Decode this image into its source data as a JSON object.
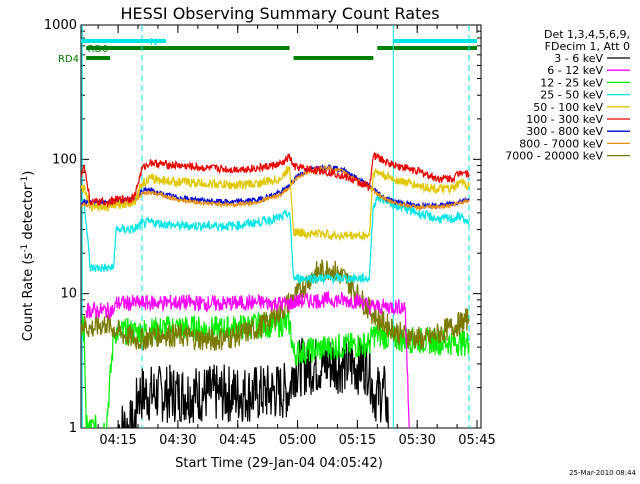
{
  "chart_data": {
    "type": "line",
    "title": "HESSI Observing Summary Count Rates",
    "xlabel": "Start Time (29-Jan-04 04:05:42)",
    "ylabel_main": "Count Rate (s",
    "ylabel_sup1": "-1",
    "ylabel_mid": " detector",
    "ylabel_sup2": "-1",
    "ylabel_end": ")",
    "yscale": "log",
    "xlim": [
      "04:05:42",
      "05:46:00"
    ],
    "ylim": [
      1,
      1000
    ],
    "x_ticks": [
      "04:15",
      "04:30",
      "04:45",
      "05:00",
      "05:15",
      "05:30",
      "05:45"
    ],
    "y_ticks": [
      "1",
      "10",
      "100",
      "1000"
    ],
    "legend_placement": "right",
    "legend_header": [
      "Det 1,3,4,5,6,9,",
      "FDecim 1, Att 0"
    ],
    "legend": [
      {
        "label": "3 - 6 keV",
        "color": "#000000"
      },
      {
        "label": "6 - 12 keV",
        "color": "#ff00ff"
      },
      {
        "label": "12 - 25 keV",
        "color": "#00ee00"
      },
      {
        "label": "25 - 50 keV",
        "color": "#00e5e5"
      },
      {
        "label": "50 - 100 keV",
        "color": "#e0c800"
      },
      {
        "label": "100 - 300 keV",
        "color": "#e80000"
      },
      {
        "label": "300 - 800 keV",
        "color": "#0000dd"
      },
      {
        "label": "800 - 7000 keV",
        "color": "#e89010"
      },
      {
        "label": "7000 - 20000 keV",
        "color": "#7a7a00"
      }
    ],
    "series": [
      {
        "name": "100 - 300 keV",
        "color": "#e80000",
        "x": [
          "04:05:42",
          "04:06:30",
          "04:08:00",
          "04:12:00",
          "04:15:00",
          "04:19:00",
          "04:21:00",
          "04:23:00",
          "04:26:00",
          "04:30:00",
          "04:37:00",
          "04:44:00",
          "04:50:00",
          "04:56:00",
          "04:58:00",
          "04:59:00",
          "05:02:00",
          "05:06:00",
          "05:10:00",
          "05:13:00",
          "05:16:00",
          "05:18:00",
          "05:19:00",
          "05:20:00",
          "05:22:00",
          "05:25:00",
          "05:30:00",
          "05:35:00",
          "05:39:00",
          "05:41:00",
          "05:43:00"
        ],
        "y": [
          75,
          90,
          48,
          48,
          50,
          52,
          85,
          95,
          92,
          90,
          86,
          84,
          86,
          92,
          105,
          88,
          85,
          82,
          78,
          72,
          66,
          62,
          105,
          105,
          95,
          90,
          82,
          72,
          72,
          82,
          78
        ]
      },
      {
        "name": "50 - 100 keV",
        "color": "#e0c800",
        "x": [
          "04:05:42",
          "04:06:30",
          "04:08:00",
          "04:12:00",
          "04:15:00",
          "04:19:00",
          "04:21:00",
          "04:23:00",
          "04:26:00",
          "04:30:00",
          "04:37:00",
          "04:44:00",
          "04:50:00",
          "04:56:00",
          "04:58:00",
          "04:59:00",
          "05:02:00",
          "05:06:00",
          "05:10:00",
          "05:13:00",
          "05:16:00",
          "05:18:00",
          "05:19:00",
          "05:20:00",
          "05:22:00",
          "05:25:00",
          "05:30:00",
          "05:35:00",
          "05:39:00",
          "05:41:00",
          "05:43:00"
        ],
        "y": [
          60,
          62,
          45,
          44,
          46,
          48,
          66,
          72,
          70,
          68,
          66,
          64,
          66,
          72,
          88,
          29,
          28,
          28,
          27,
          27,
          27,
          27,
          80,
          80,
          75,
          70,
          64,
          60,
          60,
          68,
          63
        ]
      },
      {
        "name": "800 - 7000 keV",
        "color": "#e89010",
        "x": [
          "04:05:42",
          "04:06:30",
          "04:08:00",
          "04:12:00",
          "04:15:00",
          "04:19:00",
          "04:21:00",
          "04:23:00",
          "04:26:00",
          "04:30:00",
          "04:37:00",
          "04:44:00",
          "04:50:00",
          "04:56:00",
          "04:58:00",
          "05:00:00",
          "05:04:00",
          "05:08:00",
          "05:12:00",
          "05:16:00",
          "05:20:00",
          "05:22:00",
          "05:25:00",
          "05:30:00",
          "05:35:00",
          "05:39:00",
          "05:41:00",
          "05:43:00"
        ],
        "y": [
          45,
          46,
          45,
          45,
          46,
          48,
          56,
          57,
          54,
          50,
          47,
          46,
          48,
          55,
          62,
          74,
          84,
          86,
          80,
          67,
          56,
          50,
          47,
          44,
          44,
          46,
          48,
          50
        ]
      },
      {
        "name": "300 - 800 keV",
        "color": "#0000dd",
        "x": [
          "04:05:42",
          "04:06:30",
          "04:08:00",
          "04:12:00",
          "04:15:00",
          "04:19:00",
          "04:21:00",
          "04:23:00",
          "04:26:00",
          "04:30:00",
          "04:37:00",
          "04:44:00",
          "04:50:00",
          "04:56:00",
          "04:58:00",
          "05:00:00",
          "05:04:00",
          "05:08:00",
          "05:12:00",
          "05:16:00",
          "05:20:00",
          "05:22:00",
          "05:25:00",
          "05:30:00",
          "05:35:00",
          "05:39:00",
          "05:41:00",
          "05:43:00"
        ],
        "y": [
          47,
          48,
          48,
          48,
          49,
          50,
          58,
          59,
          55,
          52,
          49,
          48,
          50,
          57,
          64,
          76,
          86,
          88,
          82,
          69,
          57,
          51,
          48,
          45,
          45,
          47,
          49,
          51
        ]
      },
      {
        "name": "25 - 50 keV",
        "color": "#00e5e5",
        "x": [
          "04:05:42",
          "04:06:30",
          "04:08:00",
          "04:12:00",
          "04:13:50",
          "04:14:30",
          "04:19:00",
          "04:21:00",
          "04:23:00",
          "04:30:00",
          "04:37:00",
          "04:44:00",
          "04:50:00",
          "04:56:00",
          "04:58:00",
          "04:59:00",
          "05:02:00",
          "05:08:00",
          "05:14:00",
          "05:18:00",
          "05:19:00",
          "05:20:00",
          "05:22:00",
          "05:25:00",
          "05:30:00",
          "05:35:00",
          "05:39:00",
          "05:41:00",
          "05:43:00"
        ],
        "y": [
          48,
          50,
          15.5,
          15.5,
          15.5,
          30,
          30,
          33,
          34,
          32,
          32,
          32,
          34,
          37,
          40,
          13,
          13,
          13,
          13,
          13,
          45,
          52,
          50,
          45,
          40,
          36,
          36,
          38,
          32
        ]
      },
      {
        "name": "6 - 12 keV",
        "color": "#ff00ff",
        "x": [
          "04:07:00",
          "04:10:00",
          "04:14:00",
          "04:14:30",
          "04:20:00",
          "04:30:00",
          "04:40:00",
          "04:50:00",
          "04:58:00",
          "05:00:00",
          "05:08:00",
          "05:16:00",
          "05:18:00",
          "05:22:00",
          "05:27:00",
          "05:28:00"
        ],
        "y": [
          7.5,
          7.5,
          7.5,
          8.5,
          8.5,
          8.6,
          8.4,
          8.6,
          8.4,
          8.8,
          9,
          8.8,
          8,
          8,
          8,
          1
        ]
      },
      {
        "name": "7000 - 20000 keV",
        "color": "#7a7a00",
        "x": [
          "04:05:42",
          "04:08:00",
          "04:12:00",
          "04:16:00",
          "04:20:00",
          "04:26:00",
          "04:32:00",
          "04:38:00",
          "04:44:00",
          "04:50:00",
          "04:56:00",
          "05:00:00",
          "05:04:00",
          "05:08:00",
          "05:12:00",
          "05:16:00",
          "05:20:00",
          "05:26:00",
          "05:32:00",
          "05:38:00",
          "05:43:00"
        ],
        "y": [
          6,
          5.5,
          6,
          5,
          4.5,
          5,
          4.8,
          4.5,
          4.8,
          5.5,
          7.5,
          10,
          14,
          15.5,
          13,
          9,
          6.5,
          5,
          4.5,
          5.5,
          6.5
        ]
      },
      {
        "name": "12 - 25 keV",
        "color": "#00ee00",
        "x": [
          "04:05:42",
          "04:06:30",
          "04:07:00",
          "04:12:00",
          "04:14:00",
          "04:20:00",
          "04:30:00",
          "04:40:00",
          "04:50:00",
          "04:58:00",
          "04:59:00",
          "05:08:00",
          "05:18:00",
          "05:19:00",
          "05:25:00",
          "05:35:00",
          "05:43:00"
        ],
        "y": [
          5.5,
          5.5,
          1,
          1,
          5.2,
          5.2,
          5.6,
          5.4,
          5.8,
          6,
          3.6,
          4,
          4.2,
          5,
          4.6,
          4.4,
          4.3
        ]
      },
      {
        "name": "3 - 6 keV",
        "color": "#000000",
        "x": [
          "04:15:00",
          "04:19:00",
          "04:20:00",
          "04:30:00",
          "04:40:00",
          "04:50:00",
          "04:58:00",
          "04:59:00",
          "05:08:00",
          "05:18:00",
          "05:19:00",
          "05:22:00",
          "05:23:00"
        ],
        "y": [
          1,
          1,
          1.8,
          1.8,
          1.8,
          1.8,
          1.9,
          2.8,
          3,
          2.9,
          1.8,
          1.8,
          1
        ]
      }
    ],
    "state_bars": [
      {
        "label": "N",
        "color": "#00e5e5",
        "segments": [
          [
            "04:05:42",
            "04:27:00"
          ],
          [
            "05:24:00",
            "05:45:00"
          ]
        ]
      },
      {
        "label": "RD0",
        "color": "#008000",
        "segments": [
          [
            "04:07:00",
            "04:58:00"
          ],
          [
            "05:20:00",
            "05:45:00"
          ]
        ]
      },
      {
        "label": "RD4",
        "color": "#008000",
        "segments": [
          [
            "04:07:00",
            "04:13:00"
          ],
          [
            "04:59:00",
            "05:19:00"
          ]
        ]
      }
    ],
    "vertical_solid": [
      "04:06:00",
      "05:24:00"
    ],
    "vertical_dashed": [
      "04:21:00",
      "05:43:00"
    ]
  },
  "footer": {
    "timestamp": "25-Mar-2010 08:44"
  }
}
